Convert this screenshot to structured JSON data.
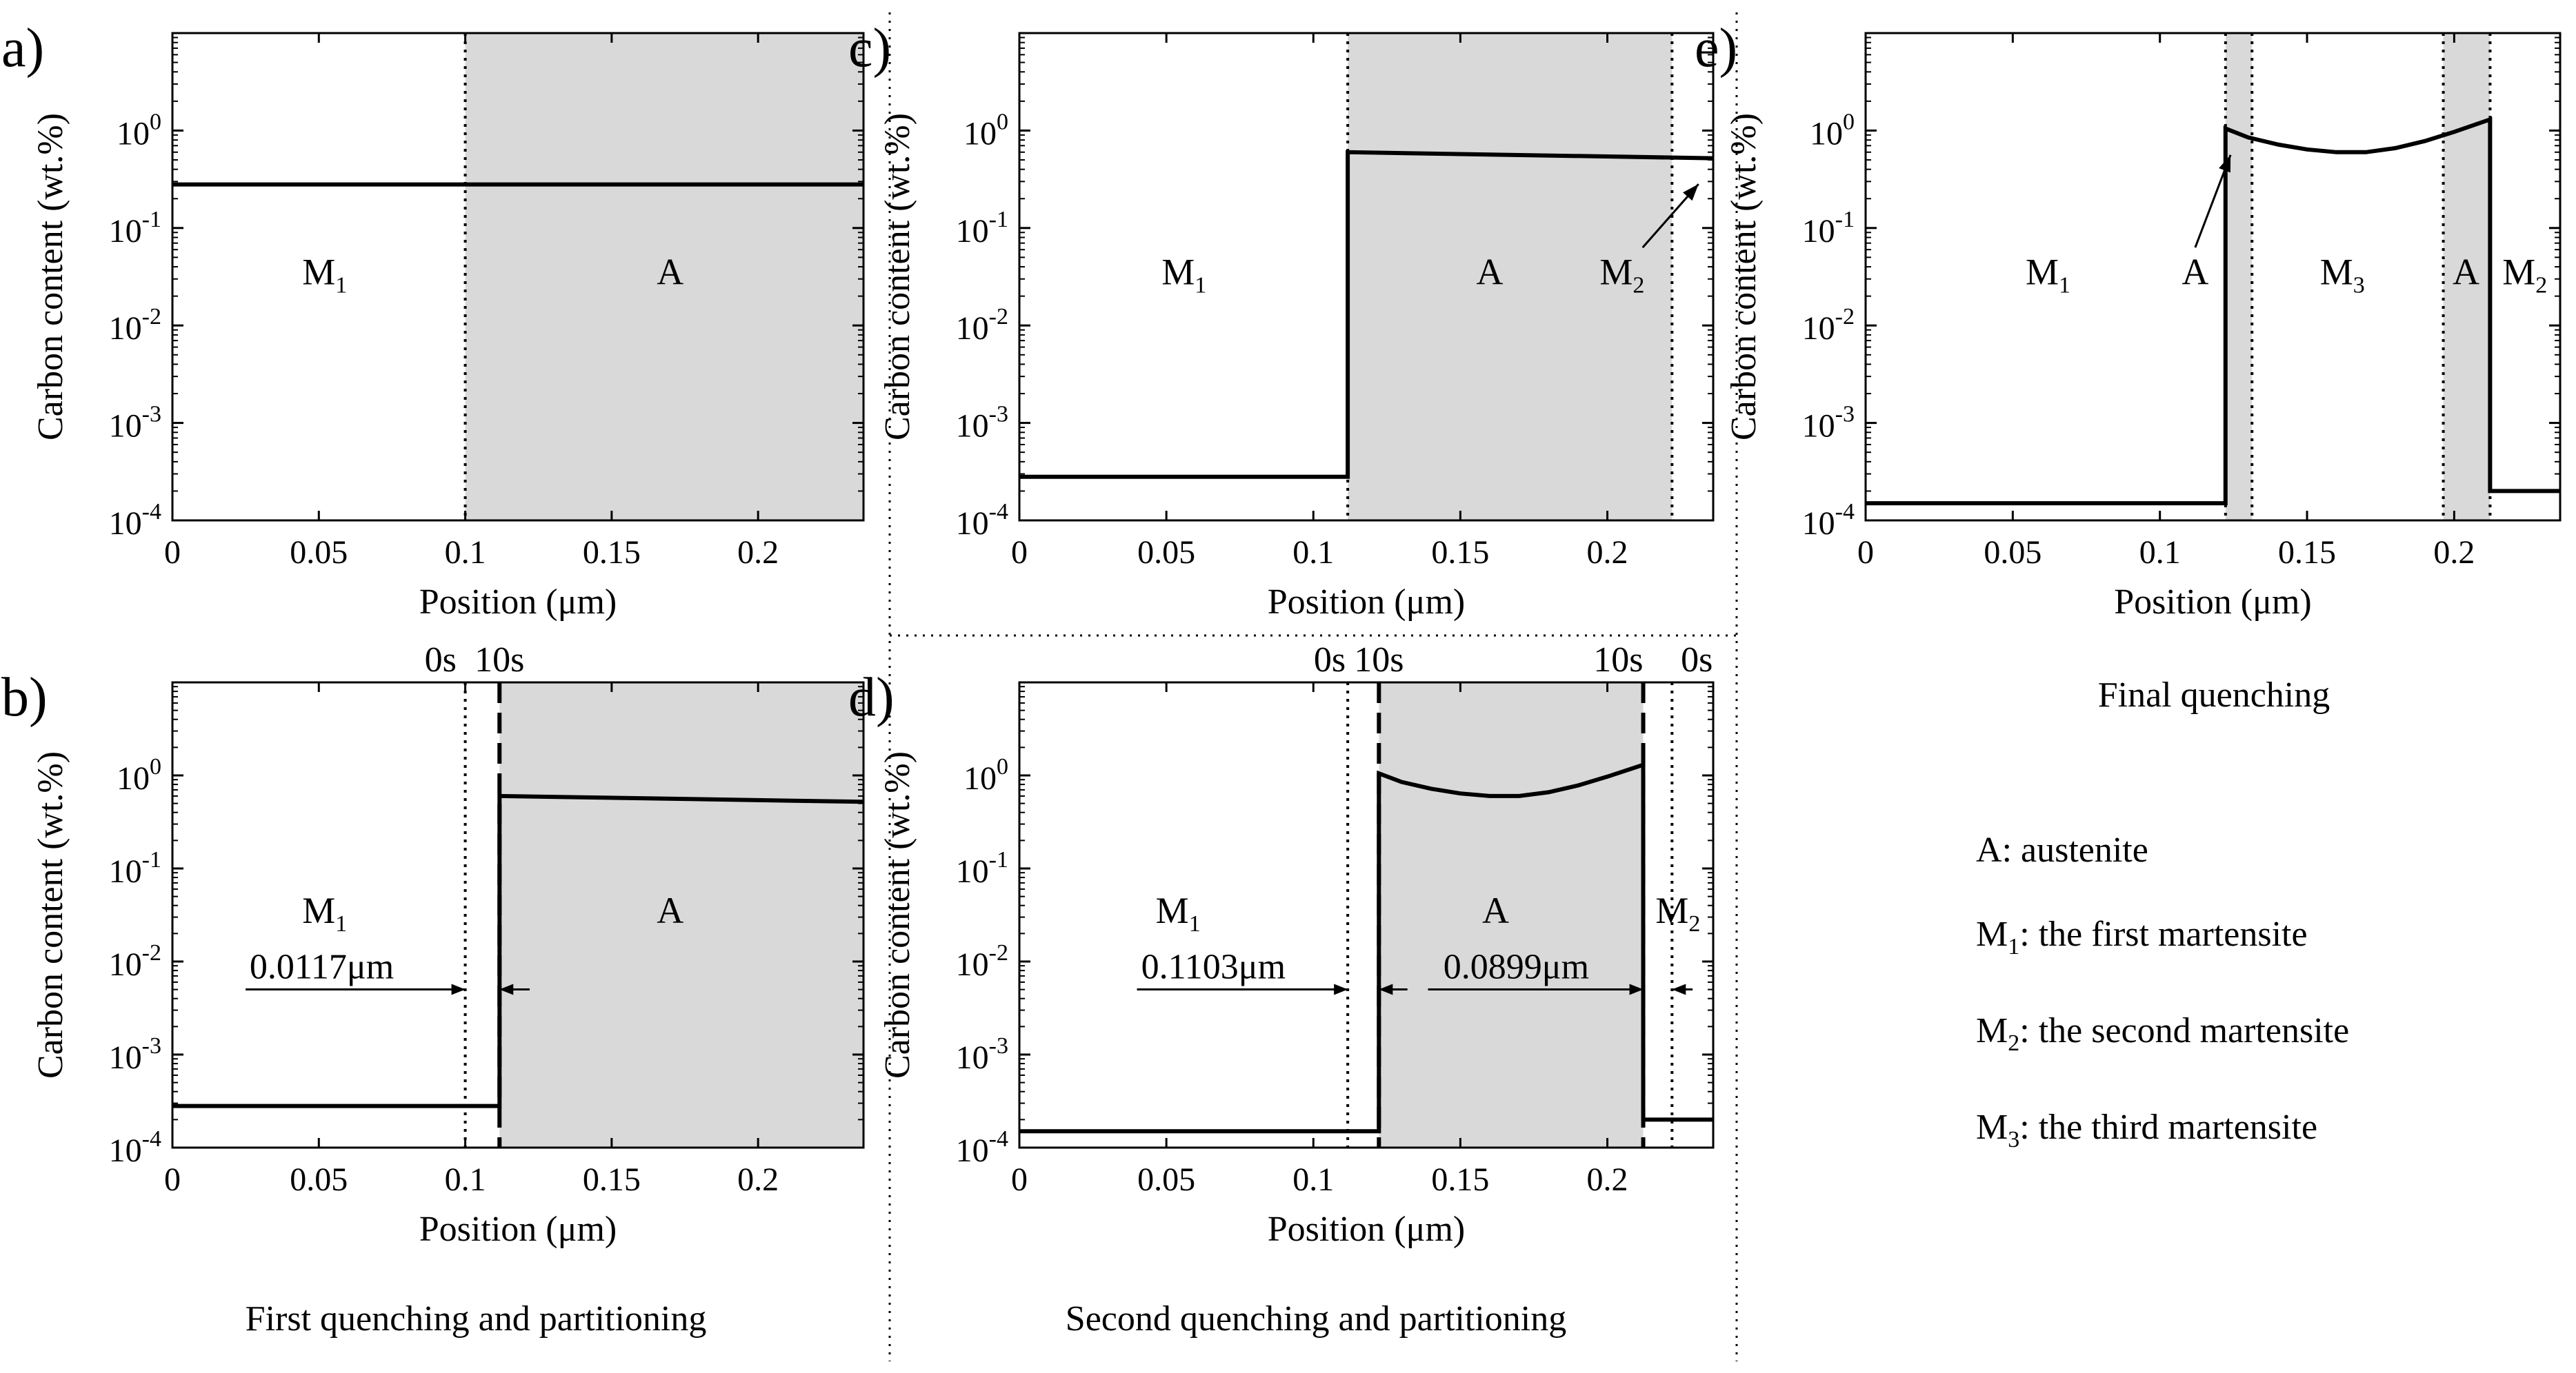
{
  "figure_captions": {
    "b": "First quenching and partitioning",
    "d": "Second quenching and partitioning",
    "e": "Final quenching"
  },
  "legend": {
    "austenite": {
      "symbol": "A",
      "text": ": austenite"
    },
    "m1": {
      "symbol": "M",
      "sub": "1",
      "text": ": the first martensite"
    },
    "m2": {
      "symbol": "M",
      "sub": "2",
      "text": ": the second martensite"
    },
    "m3": {
      "symbol": "M",
      "sub": "3",
      "text": ": the third martensite"
    }
  },
  "colors": {
    "shade": "#d9d9d9",
    "line": "#000000"
  },
  "chart_data": [
    {
      "id": "a",
      "panel_label": "a)",
      "type": "line",
      "xlabel": "Position (μm)",
      "ylabel": "Carbon content (wt.%)",
      "xlim": [
        0,
        0.236
      ],
      "ylim_log10": [
        -4,
        1
      ],
      "yscale": "log",
      "x_ticks": [
        "0",
        "0.05",
        "0.1",
        "0.15",
        "0.2"
      ],
      "x_tick_values": [
        0,
        0.05,
        0.1,
        0.15,
        0.2
      ],
      "y_tick_labels": [
        {
          "base": "10",
          "exp": "0"
        },
        {
          "base": "10",
          "exp": "-1"
        },
        {
          "base": "10",
          "exp": "-2"
        },
        {
          "base": "10",
          "exp": "-3"
        },
        {
          "base": "10",
          "exp": "-4"
        }
      ],
      "y_tick_exponents": [
        0,
        -1,
        -2,
        -3,
        -4
      ],
      "shaded_regions": [
        [
          0.1,
          0.236
        ]
      ],
      "dotted_lines": [
        0.1
      ],
      "dashed_lines": [],
      "series": [
        {
          "name": "carbon",
          "points": [
            [
              0,
              0.28
            ],
            [
              0.236,
              0.28
            ]
          ]
        }
      ],
      "phase_labels": [
        {
          "text": "M",
          "sub": "1",
          "x": 0.052,
          "y_log10": -1.45
        },
        {
          "text": "A",
          "sub": "",
          "x": 0.17,
          "y_log10": -1.45
        }
      ],
      "time_labels": [],
      "dimension_arrows": []
    },
    {
      "id": "b",
      "panel_label": "b)",
      "type": "line",
      "xlabel": "Position (μm)",
      "ylabel": "Carbon content (wt.%)",
      "xlim": [
        0,
        0.236
      ],
      "ylim_log10": [
        -4,
        1
      ],
      "yscale": "log",
      "x_ticks": [
        "0",
        "0.05",
        "0.1",
        "0.15",
        "0.2"
      ],
      "x_tick_values": [
        0,
        0.05,
        0.1,
        0.15,
        0.2
      ],
      "y_tick_labels": [
        {
          "base": "10",
          "exp": "0"
        },
        {
          "base": "10",
          "exp": "-1"
        },
        {
          "base": "10",
          "exp": "-2"
        },
        {
          "base": "10",
          "exp": "-3"
        },
        {
          "base": "10",
          "exp": "-4"
        }
      ],
      "y_tick_exponents": [
        0,
        -1,
        -2,
        -3,
        -4
      ],
      "shaded_regions": [
        [
          0.1117,
          0.236
        ]
      ],
      "dotted_lines": [
        0.1
      ],
      "dashed_lines": [
        0.1117
      ],
      "series": [
        {
          "name": "carbon",
          "points": [
            [
              0,
              0.00028
            ],
            [
              0.1117,
              0.00028
            ],
            [
              0.1117,
              0.6
            ],
            [
              0.236,
              0.52
            ]
          ]
        }
      ],
      "phase_labels": [
        {
          "text": "M",
          "sub": "1",
          "x": 0.052,
          "y_log10": -1.45
        },
        {
          "text": "A",
          "sub": "",
          "x": 0.17,
          "y_log10": -1.45
        }
      ],
      "time_labels": [
        {
          "text": "0s",
          "x": 0.097,
          "anchor": "end"
        },
        {
          "text": "10s",
          "x": 0.1117,
          "anchor": "middle"
        }
      ],
      "dimension_arrows": [
        {
          "text": "0.0117μm",
          "from": 0.025,
          "to": 0.1,
          "back_from": 0.122,
          "back_to": 0.1117,
          "y_log10": -2.3,
          "text_x": 0.051
        }
      ]
    },
    {
      "id": "c",
      "panel_label": "c)",
      "type": "line",
      "xlabel": "Position (μm)",
      "ylabel": "Carbon content (wt.%)",
      "xlim": [
        0,
        0.236
      ],
      "ylim_log10": [
        -4,
        1
      ],
      "yscale": "log",
      "x_ticks": [
        "0",
        "0.05",
        "0.1",
        "0.15",
        "0.2"
      ],
      "x_tick_values": [
        0,
        0.05,
        0.1,
        0.15,
        0.2
      ],
      "y_tick_labels": [
        {
          "base": "10",
          "exp": "0"
        },
        {
          "base": "10",
          "exp": "-1"
        },
        {
          "base": "10",
          "exp": "-2"
        },
        {
          "base": "10",
          "exp": "-3"
        },
        {
          "base": "10",
          "exp": "-4"
        }
      ],
      "y_tick_exponents": [
        0,
        -1,
        -2,
        -3,
        -4
      ],
      "shaded_regions": [
        [
          0.1117,
          0.222
        ]
      ],
      "dotted_lines": [
        0.1117,
        0.222
      ],
      "dashed_lines": [],
      "series": [
        {
          "name": "carbon",
          "points": [
            [
              0,
              0.00028
            ],
            [
              0.1117,
              0.00028
            ],
            [
              0.1117,
              0.6
            ],
            [
              0.236,
              0.52
            ]
          ]
        }
      ],
      "phase_labels": [
        {
          "text": "M",
          "sub": "1",
          "x": 0.056,
          "y_log10": -1.45
        },
        {
          "text": "A",
          "sub": "",
          "x": 0.16,
          "y_log10": -1.45
        },
        {
          "text": "M",
          "sub": "2",
          "x": 0.205,
          "y_log10": -1.45
        }
      ],
      "time_labels": [],
      "dimension_arrows": [],
      "pointer_arrow": {
        "from": [
          0.212,
          -1.2
        ],
        "to": [
          0.231,
          -0.55
        ]
      }
    },
    {
      "id": "d",
      "panel_label": "d)",
      "type": "line",
      "xlabel": "Position (μm)",
      "ylabel": "Carbon content (wt.%)",
      "xlim": [
        0,
        0.236
      ],
      "ylim_log10": [
        -4,
        1
      ],
      "yscale": "log",
      "x_ticks": [
        "0",
        "0.05",
        "0.1",
        "0.15",
        "0.2"
      ],
      "x_tick_values": [
        0,
        0.05,
        0.1,
        0.15,
        0.2
      ],
      "y_tick_labels": [
        {
          "base": "10",
          "exp": "0"
        },
        {
          "base": "10",
          "exp": "-1"
        },
        {
          "base": "10",
          "exp": "-2"
        },
        {
          "base": "10",
          "exp": "-3"
        },
        {
          "base": "10",
          "exp": "-4"
        }
      ],
      "y_tick_exponents": [
        0,
        -1,
        -2,
        -3,
        -4
      ],
      "shaded_regions": [
        [
          0.1223,
          0.2122
        ]
      ],
      "dotted_lines": [
        0.1117,
        0.222
      ],
      "dashed_lines": [
        0.1223,
        0.2122
      ],
      "series": [
        {
          "name": "carbon",
          "points": [
            [
              0,
              0.00015
            ],
            [
              0.1223,
              0.00015
            ],
            [
              0.1223,
              1.05
            ],
            [
              0.13,
              0.85
            ],
            [
              0.14,
              0.72
            ],
            [
              0.15,
              0.64
            ],
            [
              0.16,
              0.6
            ],
            [
              0.17,
              0.6
            ],
            [
              0.18,
              0.66
            ],
            [
              0.19,
              0.78
            ],
            [
              0.2,
              0.97
            ],
            [
              0.2122,
              1.3
            ],
            [
              0.2122,
              0.0002
            ],
            [
              0.236,
              0.0002
            ]
          ]
        }
      ],
      "phase_labels": [
        {
          "text": "M",
          "sub": "1",
          "x": 0.054,
          "y_log10": -1.45
        },
        {
          "text": "A",
          "sub": "",
          "x": 0.162,
          "y_log10": -1.45
        },
        {
          "text": "M",
          "sub": "2",
          "x": 0.224,
          "y_log10": -1.45
        }
      ],
      "time_labels": [
        {
          "text": "0s",
          "x": 0.111,
          "anchor": "end"
        },
        {
          "text": "10s",
          "x": 0.1223,
          "anchor": "middle"
        },
        {
          "text": "10s",
          "x": 0.2122,
          "anchor": "end"
        },
        {
          "text": "0s",
          "x": 0.225,
          "anchor": "start"
        }
      ],
      "dimension_arrows": [
        {
          "text": "0.1103μm",
          "from": 0.04,
          "to": 0.1117,
          "back_from": 0.132,
          "back_to": 0.1223,
          "y_log10": -2.3,
          "text_x": 0.066
        },
        {
          "text": "0.0899μm",
          "from": 0.139,
          "to": 0.2122,
          "back_from": 0.229,
          "back_to": 0.222,
          "y_log10": -2.3,
          "text_x": 0.169
        }
      ]
    },
    {
      "id": "e",
      "panel_label": "e)",
      "type": "line",
      "xlabel": "Position (μm)",
      "ylabel": "Carbon content (wt.%)",
      "xlim": [
        0,
        0.236
      ],
      "ylim_log10": [
        -4,
        1
      ],
      "yscale": "log",
      "x_ticks": [
        "0",
        "0.05",
        "0.1",
        "0.15",
        "0.2"
      ],
      "x_tick_values": [
        0,
        0.05,
        0.1,
        0.15,
        0.2
      ],
      "y_tick_labels": [
        {
          "base": "10",
          "exp": "0"
        },
        {
          "base": "10",
          "exp": "-1"
        },
        {
          "base": "10",
          "exp": "-2"
        },
        {
          "base": "10",
          "exp": "-3"
        },
        {
          "base": "10",
          "exp": "-4"
        }
      ],
      "y_tick_exponents": [
        0,
        -1,
        -2,
        -3,
        -4
      ],
      "shaded_regions": [
        [
          0.1223,
          0.1313
        ],
        [
          0.1963,
          0.2122
        ]
      ],
      "dotted_lines": [
        0.1223,
        0.1313,
        0.1963,
        0.2122
      ],
      "dashed_lines": [],
      "series": [
        {
          "name": "carbon",
          "points": [
            [
              0,
              0.00015
            ],
            [
              0.1223,
              0.00015
            ],
            [
              0.1223,
              1.05
            ],
            [
              0.13,
              0.85
            ],
            [
              0.14,
              0.72
            ],
            [
              0.15,
              0.64
            ],
            [
              0.16,
              0.6
            ],
            [
              0.17,
              0.6
            ],
            [
              0.18,
              0.66
            ],
            [
              0.19,
              0.78
            ],
            [
              0.2,
              0.97
            ],
            [
              0.2122,
              1.3
            ],
            [
              0.2122,
              0.0002
            ],
            [
              0.236,
              0.0002
            ]
          ]
        }
      ],
      "phase_labels": [
        {
          "text": "M",
          "sub": "1",
          "x": 0.062,
          "y_log10": -1.45
        },
        {
          "text": "A",
          "sub": "",
          "x": 0.112,
          "y_log10": -1.45
        },
        {
          "text": "M",
          "sub": "3",
          "x": 0.162,
          "y_log10": -1.45
        },
        {
          "text": "A",
          "sub": "",
          "x": 0.204,
          "y_log10": -1.45
        },
        {
          "text": "M",
          "sub": "2",
          "x": 0.224,
          "y_log10": -1.45
        }
      ],
      "time_labels": [],
      "dimension_arrows": [],
      "pointer_arrow": {
        "from": [
          0.112,
          -1.2
        ],
        "to": [
          0.124,
          -0.25
        ]
      }
    }
  ]
}
